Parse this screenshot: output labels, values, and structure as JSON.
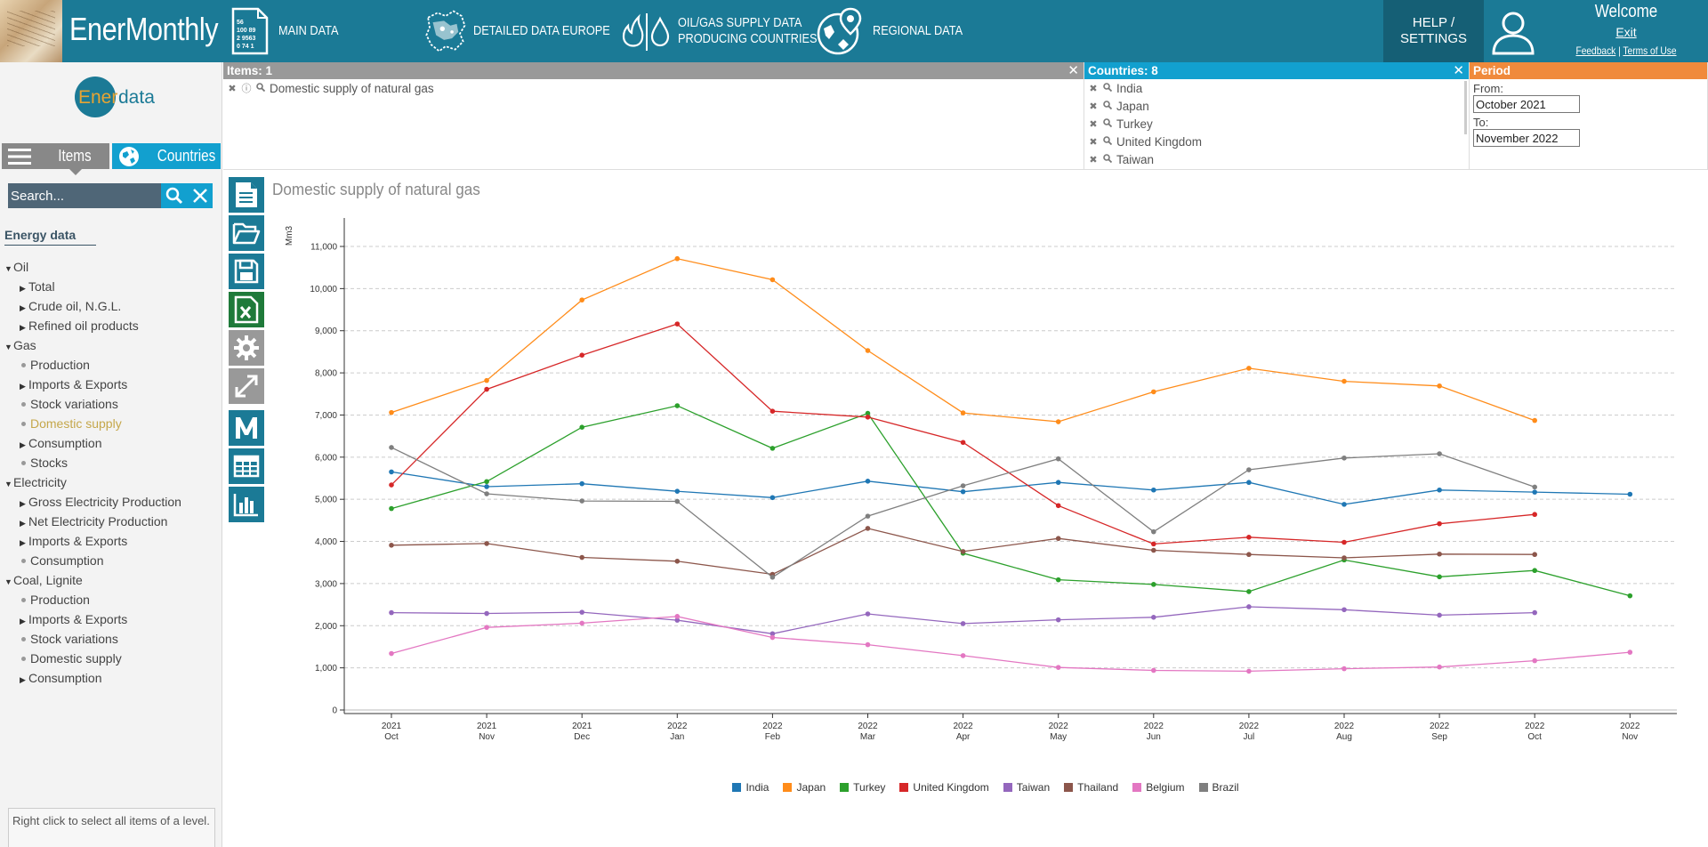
{
  "header": {
    "app_title": "EnerMonthly",
    "nav": [
      {
        "label": "MAIN DATA"
      },
      {
        "label": "DETAILED DATA EUROPE"
      },
      {
        "label_line1": "OIL/GAS SUPPLY DATA",
        "label_line2": "PRODUCING COUNTRIES"
      },
      {
        "label": "REGIONAL DATA"
      }
    ],
    "help_line1": "HELP /",
    "help_line2": "SETTINGS",
    "welcome": "Welcome",
    "exit": "Exit",
    "feedback": "Feedback",
    "separator": "|",
    "terms": "Terms of Use",
    "icon_main_lines": [
      "56",
      "100 89",
      "2 9563",
      "0 74 1"
    ]
  },
  "sidebar": {
    "logo_ener": "Ener",
    "logo_data": "data",
    "tab_items": "Items",
    "tab_countries": "Countries",
    "search_placeholder": "Search...",
    "tree_title": "Energy data",
    "tree": [
      {
        "label": "Oil",
        "level": 0,
        "kind": "expanded"
      },
      {
        "label": "Total",
        "level": 1,
        "kind": "collapsed"
      },
      {
        "label": "Crude oil, N.G.L.",
        "level": 1,
        "kind": "collapsed"
      },
      {
        "label": "Refined oil products",
        "level": 1,
        "kind": "collapsed"
      },
      {
        "label": "Gas",
        "level": 0,
        "kind": "expanded"
      },
      {
        "label": "Production",
        "level": 1,
        "kind": "leaf"
      },
      {
        "label": "Imports & Exports",
        "level": 1,
        "kind": "collapsed"
      },
      {
        "label": "Stock variations",
        "level": 1,
        "kind": "leaf"
      },
      {
        "label": "Domestic supply",
        "level": 1,
        "kind": "leaf",
        "active": true
      },
      {
        "label": "Consumption",
        "level": 1,
        "kind": "collapsed"
      },
      {
        "label": "Stocks",
        "level": 1,
        "kind": "leaf"
      },
      {
        "label": "Electricity",
        "level": 0,
        "kind": "expanded"
      },
      {
        "label": "Gross Electricity Production",
        "level": 1,
        "kind": "collapsed"
      },
      {
        "label": "Net Electricity Production",
        "level": 1,
        "kind": "collapsed"
      },
      {
        "label": "Imports & Exports",
        "level": 1,
        "kind": "collapsed"
      },
      {
        "label": "Consumption",
        "level": 1,
        "kind": "leaf"
      },
      {
        "label": "Coal, Lignite",
        "level": 0,
        "kind": "expanded"
      },
      {
        "label": "Production",
        "level": 1,
        "kind": "leaf"
      },
      {
        "label": "Imports & Exports",
        "level": 1,
        "kind": "collapsed"
      },
      {
        "label": "Stock variations",
        "level": 1,
        "kind": "leaf"
      },
      {
        "label": "Domestic supply",
        "level": 1,
        "kind": "leaf"
      },
      {
        "label": "Consumption",
        "level": 1,
        "kind": "collapsed"
      }
    ],
    "hint": "Right click to select all items of a level."
  },
  "items_panel": {
    "title": "Items: 1",
    "items": [
      "Domestic supply of natural gas"
    ]
  },
  "countries_panel": {
    "title": "Countries: 8",
    "items": [
      "India",
      "Japan",
      "Turkey",
      "United Kingdom",
      "Taiwan"
    ]
  },
  "period_panel": {
    "title": "Period",
    "from_label": "From:",
    "from_value": "October 2021",
    "to_label": "To:",
    "to_value": "November 2022"
  },
  "chart_data": {
    "type": "line",
    "title": "Domestic supply of natural gas",
    "ylabel": "Mm3",
    "xlabel": "",
    "ylim": [
      0,
      11000
    ],
    "yticks": [
      "0",
      "1,000",
      "2,000",
      "3,000",
      "4,000",
      "5,000",
      "6,000",
      "7,000",
      "8,000",
      "9,000",
      "10,000",
      "11,000"
    ],
    "categories": [
      {
        "year": "2021",
        "month": "Oct"
      },
      {
        "year": "2021",
        "month": "Nov"
      },
      {
        "year": "2021",
        "month": "Dec"
      },
      {
        "year": "2022",
        "month": "Jan"
      },
      {
        "year": "2022",
        "month": "Feb"
      },
      {
        "year": "2022",
        "month": "Mar"
      },
      {
        "year": "2022",
        "month": "Apr"
      },
      {
        "year": "2022",
        "month": "May"
      },
      {
        "year": "2022",
        "month": "Jun"
      },
      {
        "year": "2022",
        "month": "Jul"
      },
      {
        "year": "2022",
        "month": "Aug"
      },
      {
        "year": "2022",
        "month": "Sep"
      },
      {
        "year": "2022",
        "month": "Oct"
      },
      {
        "year": "2022",
        "month": "Nov"
      }
    ],
    "legend_position": "bottom",
    "grid": true,
    "series": [
      {
        "name": "India",
        "color": "#1f77b4",
        "values": [
          5650,
          5300,
          5370,
          5190,
          5040,
          5430,
          5180,
          5400,
          5220,
          5400,
          4880,
          5220,
          5170,
          5120
        ]
      },
      {
        "name": "Japan",
        "color": "#ff8c1a",
        "values": [
          7060,
          7820,
          9730,
          10710,
          10210,
          8530,
          7050,
          6840,
          7550,
          8110,
          7800,
          7690,
          6870,
          null
        ]
      },
      {
        "name": "Turkey",
        "color": "#2ca02c",
        "values": [
          4780,
          5420,
          6710,
          7220,
          6210,
          7040,
          3720,
          3090,
          2980,
          2810,
          3560,
          3160,
          3310,
          2710
        ]
      },
      {
        "name": "United Kingdom",
        "color": "#d62728",
        "values": [
          5340,
          7610,
          8420,
          9160,
          7090,
          6950,
          6350,
          4850,
          3940,
          4100,
          3980,
          4420,
          4640,
          null
        ]
      },
      {
        "name": "Taiwan",
        "color": "#9467bd",
        "values": [
          2310,
          2290,
          2320,
          2130,
          1810,
          2280,
          2050,
          2140,
          2200,
          2450,
          2380,
          2250,
          2310,
          null
        ]
      },
      {
        "name": "Thailand",
        "color": "#8c564b",
        "values": [
          3910,
          3950,
          3620,
          3530,
          3220,
          4310,
          3760,
          4070,
          3790,
          3690,
          3610,
          3700,
          3690,
          null
        ]
      },
      {
        "name": "Belgium",
        "color": "#e377c2",
        "values": [
          1340,
          1960,
          2060,
          2220,
          1720,
          1550,
          1290,
          1010,
          940,
          920,
          980,
          1020,
          1170,
          1370
        ]
      },
      {
        "name": "Brazil",
        "color": "#7f7f7f",
        "values": [
          6230,
          5130,
          4960,
          4950,
          3150,
          4600,
          5320,
          5960,
          4230,
          5700,
          5980,
          6080,
          5290,
          null
        ]
      }
    ]
  }
}
